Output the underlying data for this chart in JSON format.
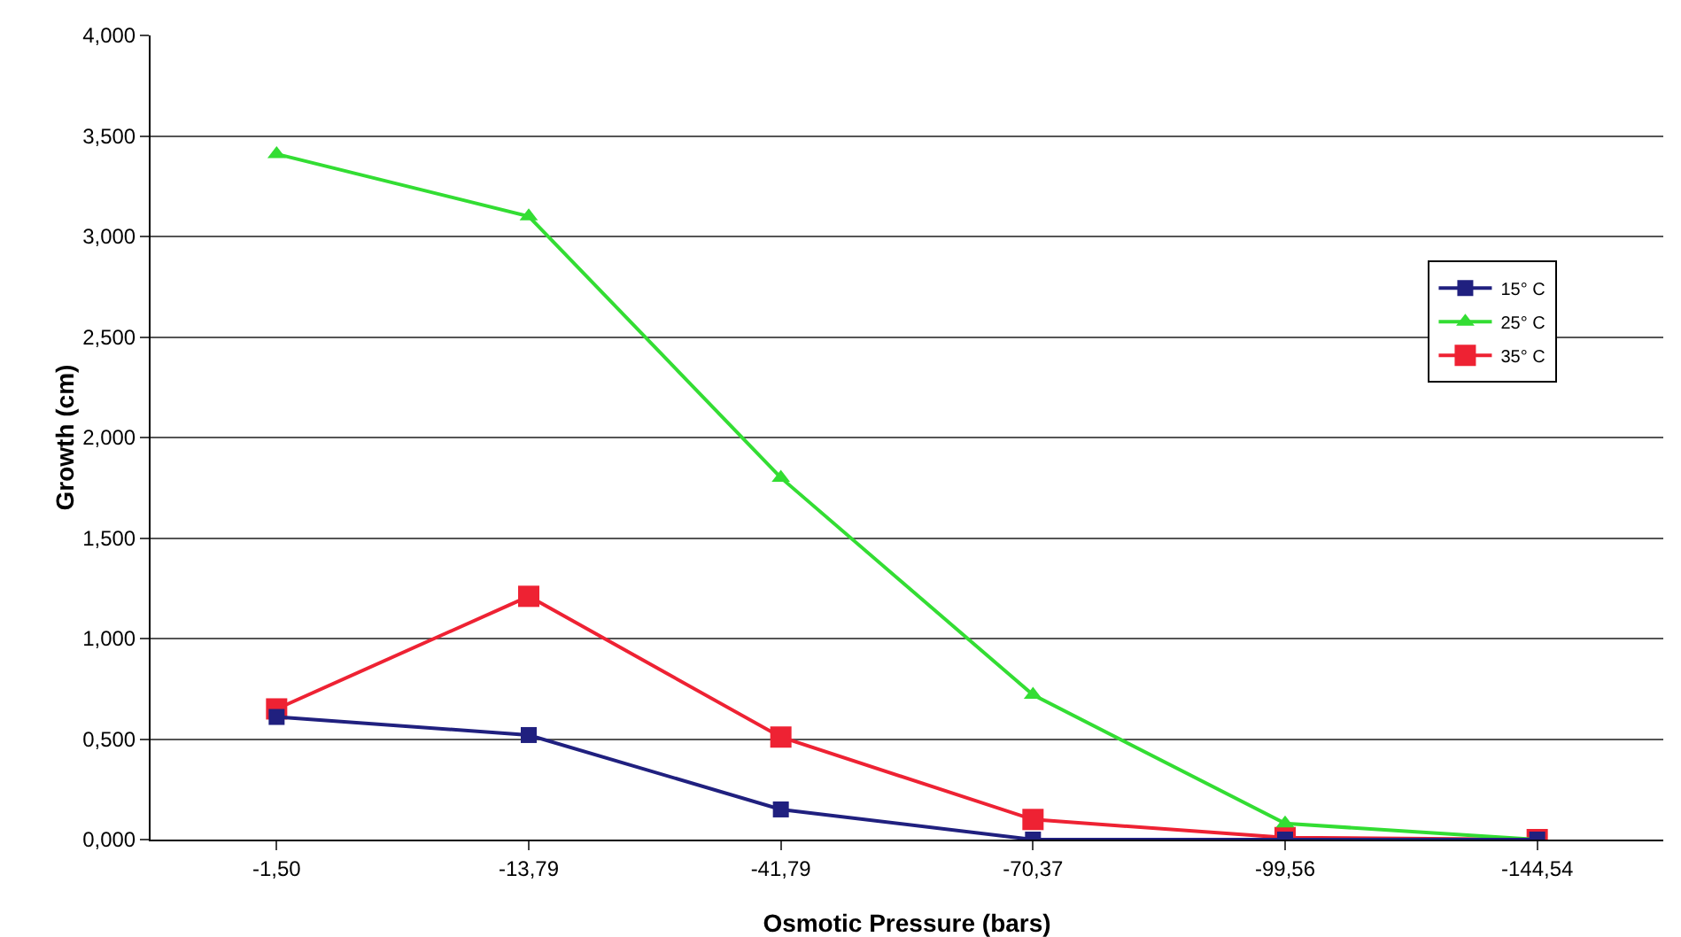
{
  "chart_data": {
    "type": "line",
    "xlabel": "Osmotic Pressure (bars)",
    "ylabel": "Growth (cm)",
    "categories": [
      "-1,50",
      "-13,79",
      "-41,79",
      "-70,37",
      "-99,56",
      "-144,54"
    ],
    "series": [
      {
        "name": "15° C",
        "color": "#20207f",
        "marker": "square",
        "values": [
          0.61,
          0.52,
          0.15,
          0,
          0,
          0
        ]
      },
      {
        "name": "25° C",
        "color": "#33dd33",
        "marker": "triangle",
        "values": [
          3.41,
          3.1,
          1.8,
          0.72,
          0.08,
          0
        ]
      },
      {
        "name": "35° C",
        "color": "#ee2233",
        "marker": "square",
        "values": [
          0.65,
          1.21,
          0.51,
          0.1,
          0.01,
          0
        ]
      }
    ],
    "ylim": [
      0,
      4
    ],
    "yticks": [
      {
        "value": 0,
        "label": "0,000"
      },
      {
        "value": 0.5,
        "label": "0,500"
      },
      {
        "value": 1,
        "label": "1,000"
      },
      {
        "value": 1.5,
        "label": "1,500"
      },
      {
        "value": 2,
        "label": "2,000"
      },
      {
        "value": 2.5,
        "label": "2,500"
      },
      {
        "value": 3,
        "label": "3,000"
      },
      {
        "value": 3.5,
        "label": "3,500"
      },
      {
        "value": 4,
        "label": "4,000"
      }
    ],
    "grid": "y",
    "legend": "right",
    "line_style": "solid"
  }
}
